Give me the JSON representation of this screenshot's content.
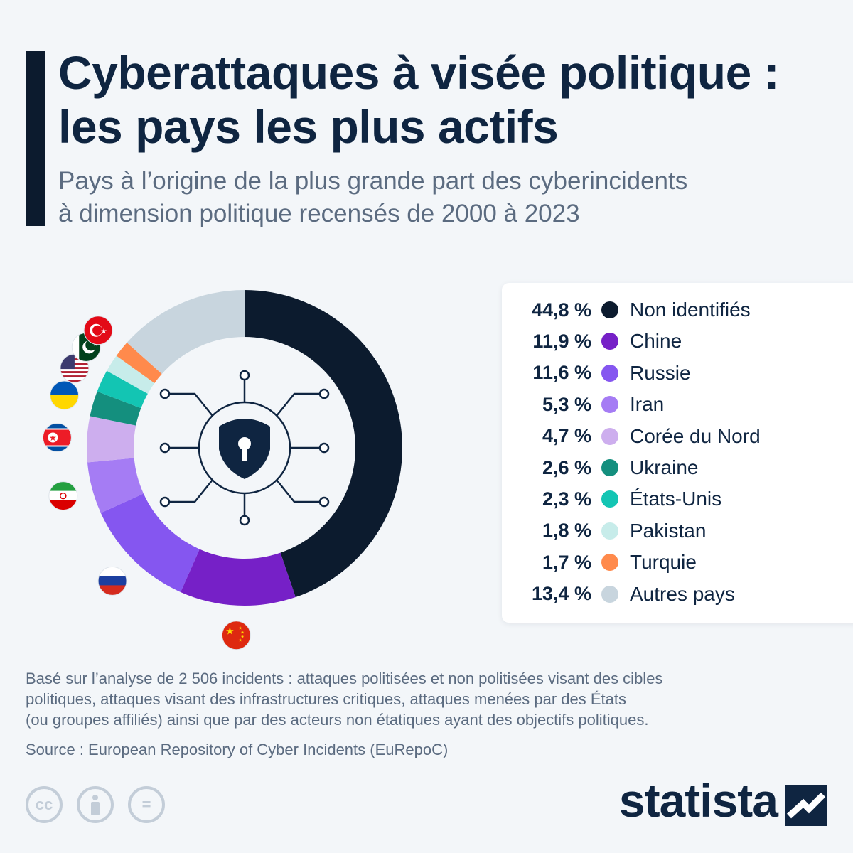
{
  "header": {
    "title_line1": "Cyberattaques à visée politique :",
    "title_line2": "les pays les plus actifs",
    "subtitle_line1": "Pays à l’origine de la plus grande part des cyberincidents",
    "subtitle_line2": "à dimension politique recensés de 2000 à 2023"
  },
  "chart_data": {
    "type": "pie",
    "title": "Cyberattaques à visée politique : les pays les plus actifs",
    "unit": "%",
    "categories": [
      "Non identifiés",
      "Chine",
      "Russie",
      "Iran",
      "Corée du Nord",
      "Ukraine",
      "États-Unis",
      "Pakistan",
      "Turquie",
      "Autres pays"
    ],
    "values": [
      44.8,
      11.9,
      11.6,
      5.3,
      4.7,
      2.6,
      2.3,
      1.8,
      1.7,
      13.4
    ],
    "value_labels": [
      "44,8 %",
      "11,9 %",
      "11,6 %",
      "5,3 %",
      "4,7 %",
      "2,6 %",
      "2,3 %",
      "1,8 %",
      "1,7 %",
      "13,4 %"
    ],
    "colors": [
      "#0c1b2e",
      "#7620c7",
      "#8556f0",
      "#a57cf4",
      "#cdaeee",
      "#148f7e",
      "#13c5b3",
      "#c7ecea",
      "#ff8a4c",
      "#c8d5de"
    ],
    "flags": [
      "none",
      "china",
      "russia",
      "iran",
      "north-korea",
      "ukraine",
      "usa",
      "pakistan",
      "turkey",
      "none"
    ],
    "legend_placement": "right",
    "center_icon": "shield-lock-circuit-icon"
  },
  "footer": {
    "note_line1": "Basé sur l’analyse de 2 506 incidents : attaques politisées et non politisées visant des cibles",
    "note_line2": "politiques, attaques visant des infrastructures critiques, attaques menées par des États",
    "note_line3": "(ou groupes affiliés) ainsi que par des acteurs non étatiques ayant des objectifs politiques.",
    "source": "Source : European Repository of Cyber Incidents (EuRepoC)",
    "cc_icons": [
      "cc-icon",
      "by-icon",
      "nd-icon"
    ],
    "cc_glyphs": [
      "cc",
      "=",
      "="
    ],
    "brand": "statista"
  }
}
